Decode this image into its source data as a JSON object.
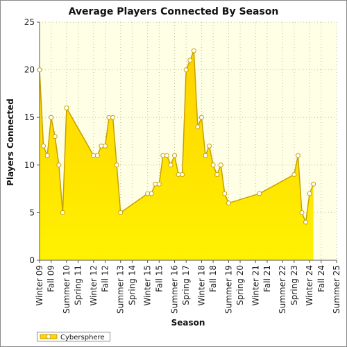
{
  "chart_data": {
    "type": "area",
    "title": "Average Players Connected By Season",
    "xlabel": "Season",
    "ylabel": "Players Connected",
    "ylim": [
      0,
      25
    ],
    "yticks": [
      0,
      5,
      10,
      15,
      20,
      25
    ],
    "grid": true,
    "legend_position": "bottom-left",
    "xlim": [
      0,
      72
    ],
    "xtick_labels": [
      {
        "x": 0,
        "label": "Winter 09"
      },
      {
        "x": 3,
        "label": "Fall 09"
      },
      {
        "x": 7,
        "label": "Summer 10"
      },
      {
        "x": 10,
        "label": "Spring 11"
      },
      {
        "x": 14,
        "label": "Winter 12"
      },
      {
        "x": 17,
        "label": "Fall 12"
      },
      {
        "x": 21,
        "label": "Summer 13"
      },
      {
        "x": 24,
        "label": "Spring 14"
      },
      {
        "x": 28,
        "label": "Winter 15"
      },
      {
        "x": 31,
        "label": "Fall 15"
      },
      {
        "x": 35,
        "label": "Summer 16"
      },
      {
        "x": 38,
        "label": "Spring 17"
      },
      {
        "x": 42,
        "label": "Winter 18"
      },
      {
        "x": 45,
        "label": "Fall 18"
      },
      {
        "x": 49,
        "label": "Summer 19"
      },
      {
        "x": 52,
        "label": "Spring 20"
      },
      {
        "x": 56,
        "label": "Winter 21"
      },
      {
        "x": 59,
        "label": "Fall 21"
      },
      {
        "x": 63,
        "label": "Summer 22"
      },
      {
        "x": 66,
        "label": "Spring 23"
      },
      {
        "x": 70,
        "label": "Winter 24"
      },
      {
        "x": 73,
        "label": "Fall 24"
      },
      {
        "x": 77,
        "label": "Summer 25"
      }
    ],
    "series": [
      {
        "name": "Cybersphere",
        "color": "#ffd800",
        "line_color": "#c8a000",
        "points": [
          {
            "x": 0,
            "y": 20
          },
          {
            "x": 1,
            "y": 12
          },
          {
            "x": 2,
            "y": 11
          },
          {
            "x": 3,
            "y": 15
          },
          {
            "x": 4,
            "y": 13
          },
          {
            "x": 5,
            "y": 10
          },
          {
            "x": 6,
            "y": 5
          },
          {
            "x": 7,
            "y": 16
          },
          {
            "x": 14,
            "y": 11
          },
          {
            "x": 15,
            "y": 11
          },
          {
            "x": 16,
            "y": 12
          },
          {
            "x": 17,
            "y": 12
          },
          {
            "x": 18,
            "y": 15
          },
          {
            "x": 19,
            "y": 15
          },
          {
            "x": 20,
            "y": 10
          },
          {
            "x": 21,
            "y": 5
          },
          {
            "x": 28,
            "y": 7
          },
          {
            "x": 29,
            "y": 7
          },
          {
            "x": 30,
            "y": 8
          },
          {
            "x": 31,
            "y": 8
          },
          {
            "x": 32,
            "y": 11
          },
          {
            "x": 33,
            "y": 11
          },
          {
            "x": 34,
            "y": 10
          },
          {
            "x": 35,
            "y": 11
          },
          {
            "x": 36,
            "y": 9
          },
          {
            "x": 37,
            "y": 9
          },
          {
            "x": 38,
            "y": 20
          },
          {
            "x": 39,
            "y": 21
          },
          {
            "x": 40,
            "y": 22
          },
          {
            "x": 41,
            "y": 14
          },
          {
            "x": 42,
            "y": 15
          },
          {
            "x": 43,
            "y": 11
          },
          {
            "x": 44,
            "y": 12
          },
          {
            "x": 45,
            "y": 10
          },
          {
            "x": 46,
            "y": 9
          },
          {
            "x": 47,
            "y": 10
          },
          {
            "x": 48,
            "y": 7
          },
          {
            "x": 49,
            "y": 6
          },
          {
            "x": 57,
            "y": 7
          },
          {
            "x": 66,
            "y": 9
          },
          {
            "x": 67,
            "y": 11
          },
          {
            "x": 68,
            "y": 5
          },
          {
            "x": 69,
            "y": 4
          },
          {
            "x": 70,
            "y": 7
          },
          {
            "x": 71,
            "y": 8
          }
        ]
      }
    ],
    "colors": {
      "plot_background": "#ffffe6",
      "grid": "#bfbf9a",
      "axis": "#555555",
      "frame": "#888888",
      "area_top": "#ffd200",
      "area_bottom": "#fff200"
    }
  }
}
